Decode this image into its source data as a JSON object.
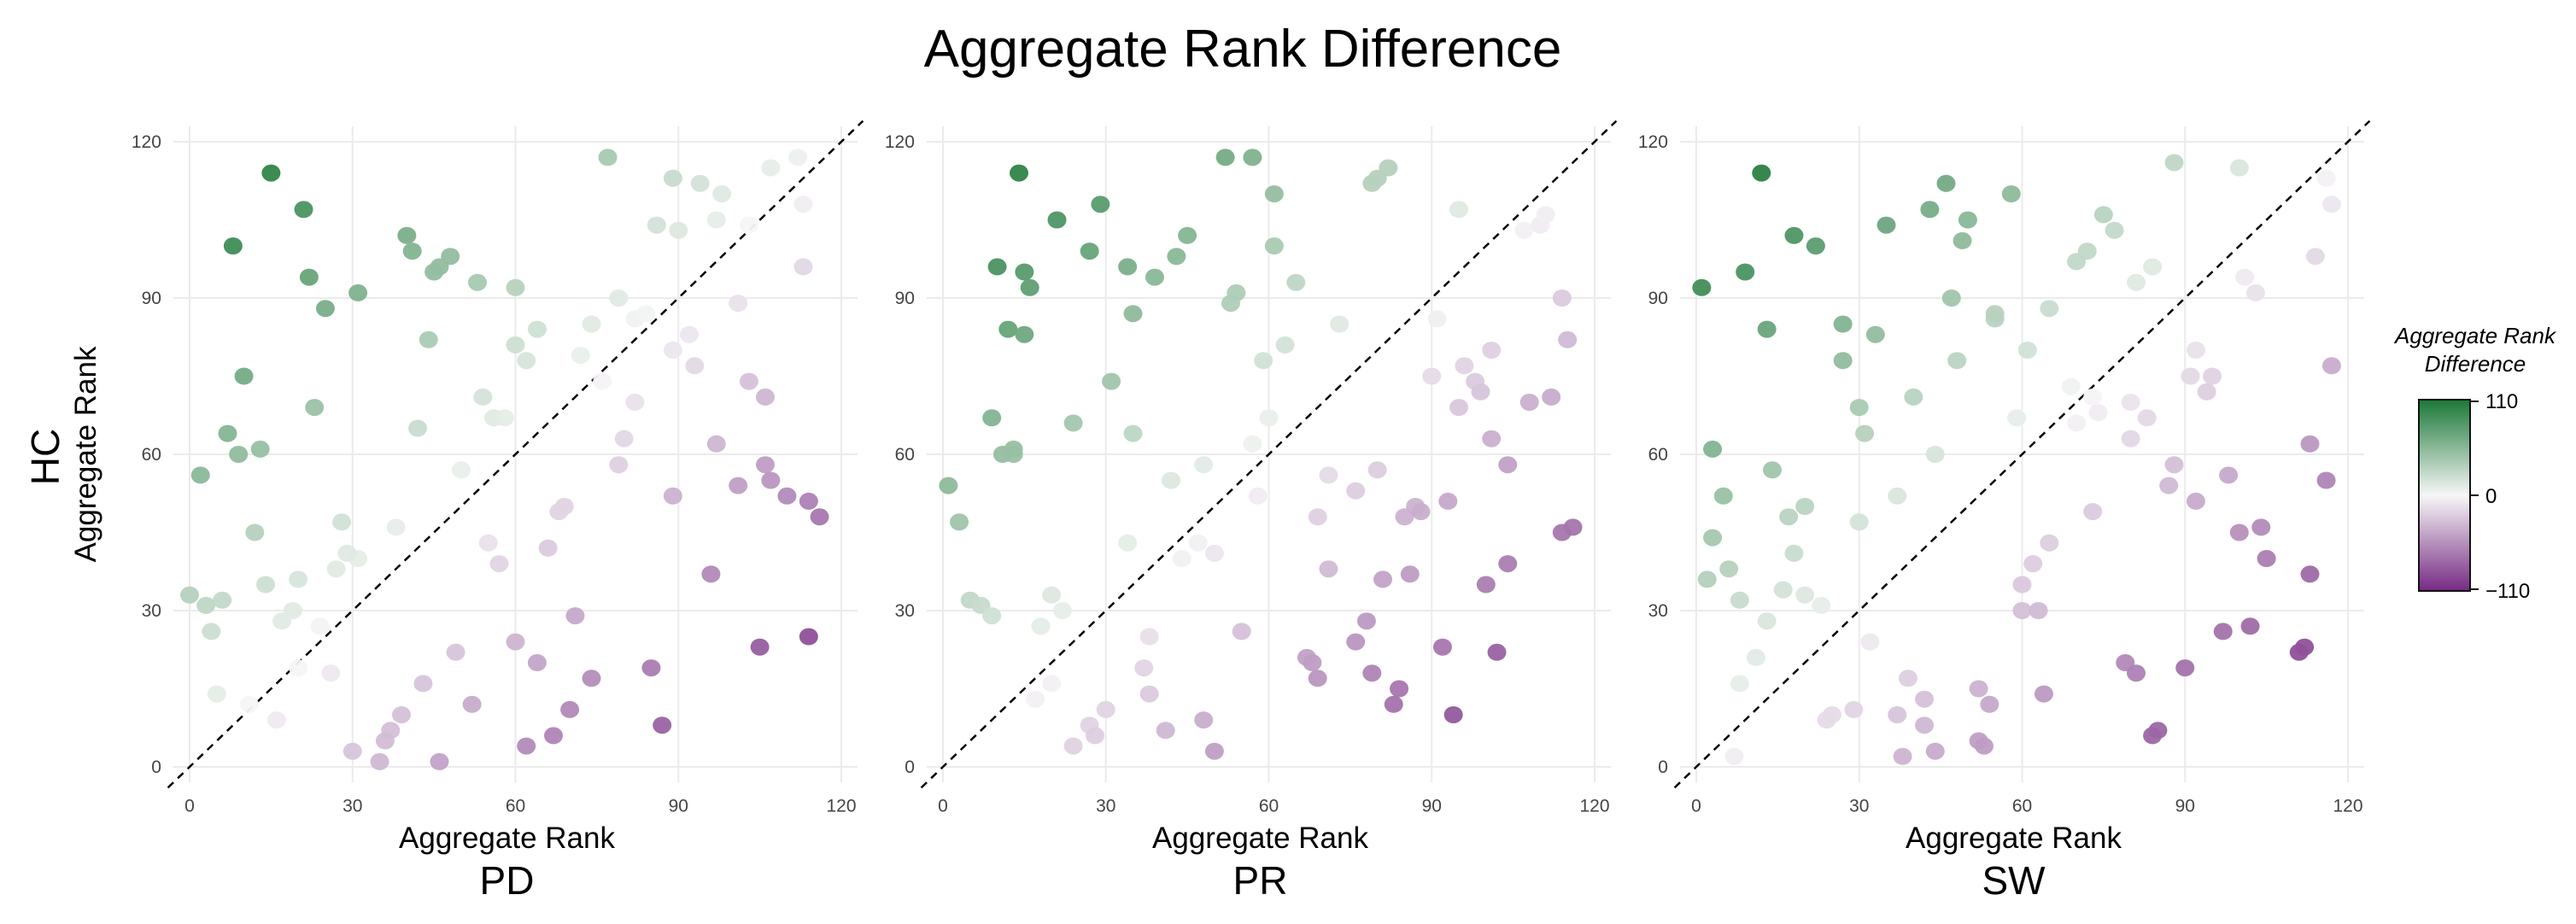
{
  "title": "Aggregate Rank Difference",
  "y_group_label": "HC",
  "legend": {
    "title_line1": "Aggregate Rank",
    "title_line2": "Difference",
    "labels": [
      "110",
      "0",
      "−110"
    ],
    "values": [
      110,
      0,
      -110
    ],
    "colors": {
      "high": "#1b7837",
      "mid": "#f7f7f7",
      "low": "#762a83"
    }
  },
  "chart_data": [
    {
      "type": "scatter",
      "panel_label": "PD",
      "xlabel": "Aggregate Rank",
      "ylabel": "Aggregate Rank",
      "xlim": [
        -3,
        123
      ],
      "ylim": [
        -3,
        123
      ],
      "xticks": [
        0,
        30,
        60,
        90,
        120
      ],
      "yticks": [
        0,
        30,
        60,
        90,
        120
      ],
      "xtick_labels": [
        "0",
        "30",
        "60",
        "90",
        "120"
      ],
      "ytick_labels": [
        "0",
        "30",
        "60",
        "90",
        "120"
      ],
      "grid": true,
      "diagonal": "y = x",
      "points": [
        [
          15,
          114
        ],
        [
          8,
          100
        ],
        [
          21,
          107
        ],
        [
          22,
          94
        ],
        [
          25,
          88
        ],
        [
          10,
          75
        ],
        [
          23,
          69
        ],
        [
          7,
          64
        ],
        [
          13,
          61
        ],
        [
          9,
          60
        ],
        [
          2,
          56
        ],
        [
          12,
          45
        ],
        [
          40,
          102
        ],
        [
          41,
          99
        ],
        [
          48,
          98
        ],
        [
          46,
          96
        ],
        [
          45,
          95
        ],
        [
          53,
          93
        ],
        [
          60,
          92
        ],
        [
          31,
          91
        ],
        [
          44,
          82
        ],
        [
          64,
          84
        ],
        [
          60,
          81
        ],
        [
          62,
          78
        ],
        [
          42,
          65
        ],
        [
          77,
          117
        ],
        [
          89,
          113
        ],
        [
          94,
          112
        ],
        [
          98,
          110
        ],
        [
          107,
          115
        ],
        [
          112,
          117
        ],
        [
          113,
          108
        ],
        [
          103,
          104
        ],
        [
          97,
          105
        ],
        [
          86,
          104
        ],
        [
          90,
          103
        ],
        [
          79,
          90
        ],
        [
          74,
          85
        ],
        [
          82,
          86
        ],
        [
          84,
          87
        ],
        [
          72,
          79
        ],
        [
          76,
          74
        ],
        [
          54,
          71
        ],
        [
          56,
          67
        ],
        [
          58,
          67
        ],
        [
          50,
          57
        ],
        [
          28,
          47
        ],
        [
          38,
          46
        ],
        [
          31,
          40
        ],
        [
          29,
          41
        ],
        [
          27,
          38
        ],
        [
          14,
          35
        ],
        [
          20,
          36
        ],
        [
          0,
          33
        ],
        [
          6,
          32
        ],
        [
          3,
          31
        ],
        [
          19,
          30
        ],
        [
          17,
          28
        ],
        [
          4,
          26
        ],
        [
          24,
          27
        ],
        [
          5,
          14
        ],
        [
          11,
          12
        ],
        [
          20,
          19
        ],
        [
          16,
          9
        ],
        [
          26,
          18
        ],
        [
          101,
          89
        ],
        [
          113,
          96
        ],
        [
          92,
          83
        ],
        [
          93,
          77
        ],
        [
          89,
          80
        ],
        [
          103,
          74
        ],
        [
          106,
          71
        ],
        [
          80,
          63
        ],
        [
          82,
          70
        ],
        [
          79,
          58
        ],
        [
          97,
          62
        ],
        [
          101,
          54
        ],
        [
          106,
          58
        ],
        [
          107,
          55
        ],
        [
          110,
          52
        ],
        [
          114,
          51
        ],
        [
          116,
          48
        ],
        [
          89,
          52
        ],
        [
          69,
          50
        ],
        [
          68,
          49
        ],
        [
          55,
          43
        ],
        [
          57,
          39
        ],
        [
          66,
          42
        ],
        [
          71,
          29
        ],
        [
          96,
          37
        ],
        [
          105,
          23
        ],
        [
          114,
          25
        ],
        [
          85,
          19
        ],
        [
          74,
          17
        ],
        [
          70,
          11
        ],
        [
          60,
          24
        ],
        [
          64,
          20
        ],
        [
          67,
          6
        ],
        [
          62,
          4
        ],
        [
          52,
          12
        ],
        [
          49,
          22
        ],
        [
          43,
          16
        ],
        [
          39,
          10
        ],
        [
          37,
          7
        ],
        [
          36,
          5
        ],
        [
          30,
          3
        ],
        [
          35,
          1
        ],
        [
          46,
          1
        ],
        [
          87,
          8
        ]
      ]
    },
    {
      "type": "scatter",
      "panel_label": "PR",
      "xlabel": "Aggregate Rank",
      "ylabel": "",
      "xlim": [
        -3,
        123
      ],
      "ylim": [
        -3,
        123
      ],
      "xticks": [
        0,
        30,
        60,
        90,
        120
      ],
      "yticks": [
        0,
        30,
        60,
        90,
        120
      ],
      "xtick_labels": [
        "0",
        "30",
        "60",
        "90",
        "120"
      ],
      "ytick_labels": [
        "0",
        "30",
        "60",
        "90",
        "120"
      ],
      "grid": true,
      "diagonal": "y = x",
      "points": [
        [
          14,
          114
        ],
        [
          29,
          108
        ],
        [
          21,
          105
        ],
        [
          27,
          99
        ],
        [
          15,
          95
        ],
        [
          10,
          96
        ],
        [
          16,
          92
        ],
        [
          34,
          96
        ],
        [
          39,
          94
        ],
        [
          43,
          98
        ],
        [
          45,
          102
        ],
        [
          52,
          117
        ],
        [
          57,
          117
        ],
        [
          61,
          110
        ],
        [
          61,
          100
        ],
        [
          54,
          91
        ],
        [
          53,
          89
        ],
        [
          65,
          93
        ],
        [
          79,
          112
        ],
        [
          80,
          113
        ],
        [
          82,
          115
        ],
        [
          95,
          107
        ],
        [
          107,
          103
        ],
        [
          110,
          104
        ],
        [
          111,
          106
        ],
        [
          12,
          84
        ],
        [
          15,
          83
        ],
        [
          35,
          87
        ],
        [
          9,
          67
        ],
        [
          13,
          60
        ],
        [
          11,
          60
        ],
        [
          24,
          66
        ],
        [
          31,
          74
        ],
        [
          35,
          64
        ],
        [
          1,
          54
        ],
        [
          3,
          47
        ],
        [
          13,
          61
        ],
        [
          73,
          85
        ],
        [
          63,
          81
        ],
        [
          59,
          78
        ],
        [
          60,
          67
        ],
        [
          57,
          62
        ],
        [
          58,
          52
        ],
        [
          48,
          58
        ],
        [
          42,
          55
        ],
        [
          34,
          43
        ],
        [
          44,
          40
        ],
        [
          47,
          43
        ],
        [
          50,
          41
        ],
        [
          91,
          86
        ],
        [
          114,
          90
        ],
        [
          115,
          82
        ],
        [
          101,
          80
        ],
        [
          90,
          75
        ],
        [
          96,
          77
        ],
        [
          98,
          74
        ],
        [
          99,
          72
        ],
        [
          95,
          69
        ],
        [
          108,
          70
        ],
        [
          112,
          71
        ],
        [
          101,
          63
        ],
        [
          104,
          58
        ],
        [
          80,
          57
        ],
        [
          76,
          53
        ],
        [
          71,
          56
        ],
        [
          69,
          48
        ],
        [
          85,
          48
        ],
        [
          87,
          50
        ],
        [
          88,
          49
        ],
        [
          93,
          51
        ],
        [
          114,
          45
        ],
        [
          116,
          46
        ],
        [
          104,
          39
        ],
        [
          100,
          35
        ],
        [
          86,
          37
        ],
        [
          81,
          36
        ],
        [
          71,
          38
        ],
        [
          67,
          21
        ],
        [
          76,
          24
        ],
        [
          78,
          28
        ],
        [
          79,
          18
        ],
        [
          68,
          20
        ],
        [
          69,
          17
        ],
        [
          55,
          26
        ],
        [
          38,
          25
        ],
        [
          37,
          19
        ],
        [
          38,
          14
        ],
        [
          30,
          11
        ],
        [
          27,
          8
        ],
        [
          28,
          6
        ],
        [
          24,
          4
        ],
        [
          20,
          16
        ],
        [
          17,
          13
        ],
        [
          5,
          32
        ],
        [
          7,
          31
        ],
        [
          9,
          29
        ],
        [
          18,
          27
        ],
        [
          20,
          33
        ],
        [
          22,
          30
        ],
        [
          41,
          7
        ],
        [
          48,
          9
        ],
        [
          50,
          3
        ],
        [
          84,
          15
        ],
        [
          83,
          12
        ],
        [
          94,
          10
        ],
        [
          102,
          22
        ],
        [
          92,
          23
        ]
      ]
    },
    {
      "type": "scatter",
      "panel_label": "SW",
      "xlabel": "Aggregate Rank",
      "ylabel": "",
      "xlim": [
        -3,
        123
      ],
      "ylim": [
        -3,
        123
      ],
      "xticks": [
        0,
        30,
        60,
        90,
        120
      ],
      "yticks": [
        0,
        30,
        60,
        90,
        120
      ],
      "xtick_labels": [
        "0",
        "30",
        "60",
        "90",
        "120"
      ],
      "ytick_labels": [
        "0",
        "30",
        "60",
        "90",
        "120"
      ],
      "grid": true,
      "diagonal": "y = x",
      "points": [
        [
          12,
          114
        ],
        [
          9,
          95
        ],
        [
          18,
          102
        ],
        [
          22,
          100
        ],
        [
          1,
          92
        ],
        [
          13,
          84
        ],
        [
          27,
          85
        ],
        [
          27,
          78
        ],
        [
          35,
          104
        ],
        [
          43,
          107
        ],
        [
          46,
          112
        ],
        [
          50,
          105
        ],
        [
          49,
          101
        ],
        [
          47,
          90
        ],
        [
          58,
          110
        ],
        [
          33,
          83
        ],
        [
          48,
          78
        ],
        [
          55,
          86
        ],
        [
          55,
          87
        ],
        [
          61,
          80
        ],
        [
          65,
          88
        ],
        [
          70,
          97
        ],
        [
          72,
          99
        ],
        [
          75,
          106
        ],
        [
          77,
          103
        ],
        [
          88,
          116
        ],
        [
          100,
          115
        ],
        [
          81,
          93
        ],
        [
          84,
          96
        ],
        [
          101,
          94
        ],
        [
          103,
          91
        ],
        [
          114,
          98
        ],
        [
          116,
          113
        ],
        [
          117,
          108
        ],
        [
          3,
          61
        ],
        [
          5,
          52
        ],
        [
          14,
          57
        ],
        [
          17,
          48
        ],
        [
          20,
          50
        ],
        [
          18,
          41
        ],
        [
          20,
          33
        ],
        [
          23,
          31
        ],
        [
          16,
          34
        ],
        [
          13,
          28
        ],
        [
          30,
          69
        ],
        [
          31,
          64
        ],
        [
          40,
          71
        ],
        [
          44,
          60
        ],
        [
          37,
          52
        ],
        [
          30,
          47
        ],
        [
          2,
          36
        ],
        [
          3,
          44
        ],
        [
          6,
          38
        ],
        [
          8,
          32
        ],
        [
          11,
          21
        ],
        [
          8,
          16
        ],
        [
          7,
          2
        ],
        [
          59,
          67
        ],
        [
          69,
          73
        ],
        [
          70,
          66
        ],
        [
          73,
          71
        ],
        [
          74,
          68
        ],
        [
          80,
          70
        ],
        [
          91,
          75
        ],
        [
          94,
          72
        ],
        [
          95,
          75
        ],
        [
          92,
          80
        ],
        [
          117,
          77
        ],
        [
          113,
          62
        ],
        [
          116,
          55
        ],
        [
          87,
          54
        ],
        [
          88,
          58
        ],
        [
          80,
          63
        ],
        [
          83,
          67
        ],
        [
          98,
          56
        ],
        [
          100,
          45
        ],
        [
          104,
          46
        ],
        [
          105,
          40
        ],
        [
          92,
          51
        ],
        [
          73,
          49
        ],
        [
          65,
          43
        ],
        [
          62,
          39
        ],
        [
          60,
          35
        ],
        [
          60,
          30
        ],
        [
          63,
          30
        ],
        [
          64,
          14
        ],
        [
          54,
          12
        ],
        [
          52,
          15
        ],
        [
          52,
          5
        ],
        [
          53,
          4
        ],
        [
          44,
          3
        ],
        [
          42,
          8
        ],
        [
          42,
          13
        ],
        [
          39,
          17
        ],
        [
          37,
          10
        ],
        [
          38,
          2
        ],
        [
          32,
          24
        ],
        [
          29,
          11
        ],
        [
          25,
          10
        ],
        [
          24,
          9
        ],
        [
          79,
          20
        ],
        [
          81,
          18
        ],
        [
          85,
          7
        ],
        [
          84,
          6
        ],
        [
          90,
          19
        ],
        [
          97,
          26
        ],
        [
          102,
          27
        ],
        [
          111,
          22
        ],
        [
          112,
          23
        ],
        [
          113,
          37
        ]
      ]
    }
  ]
}
